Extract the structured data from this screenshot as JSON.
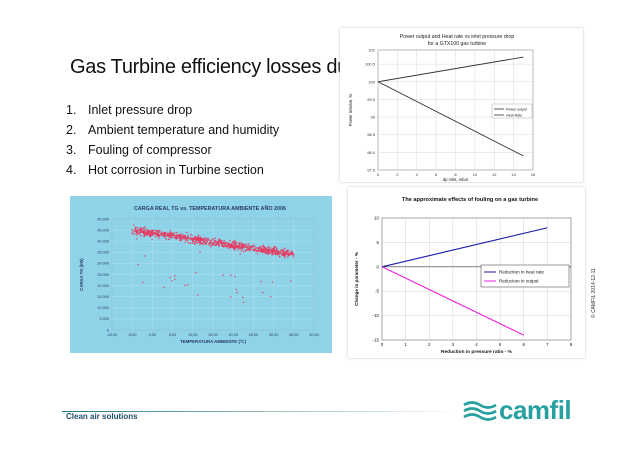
{
  "slide": {
    "title": "Gas Turbine efficiency losses due to:",
    "items": [
      {
        "num": "1.",
        "text": "Inlet pressure drop"
      },
      {
        "num": "2.",
        "text": "Ambient temperature and humidity"
      },
      {
        "num": "3.",
        "text": "Fouling of compressor"
      },
      {
        "num": "4.",
        "text": "Hot corrosion in Turbine section"
      }
    ],
    "footer": {
      "tagline": "Clean air solutions",
      "brand": "camfil"
    },
    "side_note": "© CAMFIL 2014-12-11"
  },
  "chart_data": [
    {
      "type": "line",
      "title": "Power output and Heat rate vs inlet pressure drop for a GTX100 gas turbine",
      "xlabel": "dp inlet, mbar",
      "ylabel": "Power relative, %",
      "xlim": [
        0,
        16
      ],
      "ylim": [
        97.5,
        100.9
      ],
      "xticks": [
        "0",
        "2",
        "4",
        "6",
        "8",
        "10",
        "12",
        "14",
        "16"
      ],
      "yticks": [
        "97.5",
        "98.0",
        "98.5",
        "99",
        "99.5",
        "100",
        "100.5",
        "101"
      ],
      "legend_position": "right",
      "grid": true,
      "series": [
        {
          "name": "Power output",
          "color": "#333333",
          "x": [
            0,
            15
          ],
          "y": [
            100,
            97.9
          ]
        },
        {
          "name": "Heat Rate",
          "color": "#333333",
          "x": [
            0,
            15
          ],
          "y": [
            100,
            100.7
          ]
        }
      ]
    },
    {
      "type": "scatter",
      "title": "CARGA REAL TG vs. TEMPERATURA AMBIENTE AÑO 2006",
      "xlabel": "TEMPERATURA AMBIENTE (ºC)",
      "ylabel": "CARGA TG (kW)",
      "xlim": [
        -10,
        40
      ],
      "ylim": [
        0,
        50000
      ],
      "xticks": [
        "-10,00",
        "-5,00",
        "0,00",
        "5,00",
        "10,00",
        "15,00",
        "20,00",
        "25,00",
        "30,00",
        "35,00",
        "40,00"
      ],
      "yticks": [
        "0",
        "5.000",
        "10.000",
        "15.000",
        "20.000",
        "25.000",
        "30.000",
        "35.000",
        "40.000",
        "45.000",
        "50.000"
      ],
      "grid": true,
      "point_color": "#e8365c",
      "background_color": "#8fd3e8",
      "trend": {
        "x": [
          -5,
          35
        ],
        "y": [
          45000,
          34000
        ]
      }
    },
    {
      "type": "line",
      "title": "The approximate effects of fouling on a gas turbine",
      "xlabel": "Reduction in pressure ratio - %",
      "ylabel": "Change in parameter - %",
      "xlim": [
        0,
        8
      ],
      "ylim": [
        -15,
        10
      ],
      "xticks": [
        "0",
        "1",
        "2",
        "3",
        "4",
        "5",
        "6",
        "7",
        "8"
      ],
      "yticks": [
        "10",
        "5",
        "0",
        "-5",
        "-10",
        "-15"
      ],
      "legend_position": "right",
      "grid": true,
      "series": [
        {
          "name": "Reduction in heat rate",
          "color": "#1a1aa6",
          "x": [
            0,
            7
          ],
          "y": [
            0,
            8
          ]
        },
        {
          "name": "Reduction in output",
          "color": "#ee22dd",
          "x": [
            0,
            6
          ],
          "y": [
            0,
            -14
          ]
        }
      ]
    }
  ]
}
